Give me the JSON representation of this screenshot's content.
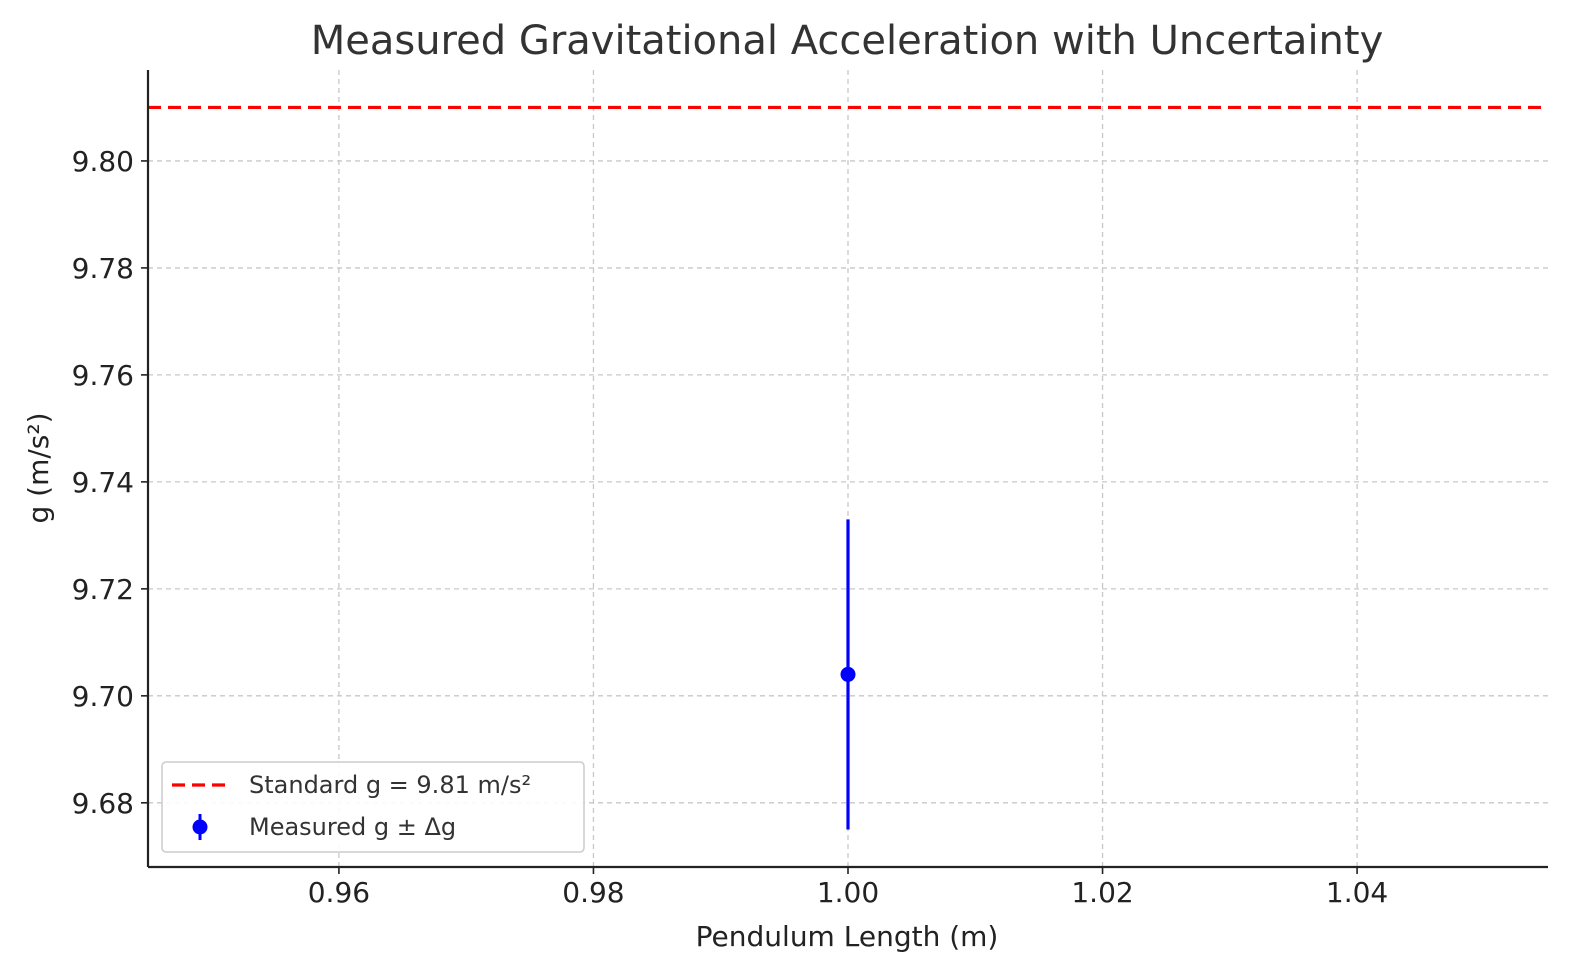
{
  "chart_data": {
    "type": "scatter",
    "title": "Measured Gravitational Acceleration with Uncertainty",
    "xlabel": "Pendulum Length (m)",
    "ylabel": "g (m/s²)",
    "xlim": [
      0.945,
      1.055
    ],
    "ylim": [
      9.668,
      9.817
    ],
    "x_ticks": [
      0.96,
      0.98,
      1.0,
      1.02,
      1.04
    ],
    "x_tick_labels": [
      "0.96",
      "0.98",
      "1.00",
      "1.02",
      "1.04"
    ],
    "y_ticks": [
      9.68,
      9.7,
      9.72,
      9.74,
      9.76,
      9.78,
      9.8
    ],
    "y_tick_labels": [
      "9.68",
      "9.70",
      "9.72",
      "9.74",
      "9.76",
      "9.78",
      "9.80"
    ],
    "grid": true,
    "legend_position": "lower-left",
    "series": [
      {
        "name": "Standard g = 9.81 m/s²",
        "kind": "hline",
        "y": 9.81,
        "color": "#ff0000",
        "style": "dashed"
      },
      {
        "name": "Measured g ± Δg",
        "kind": "errorbar",
        "x": [
          1.0
        ],
        "y": [
          9.704
        ],
        "yerr": [
          0.029
        ],
        "color": "#0000ff"
      }
    ]
  }
}
